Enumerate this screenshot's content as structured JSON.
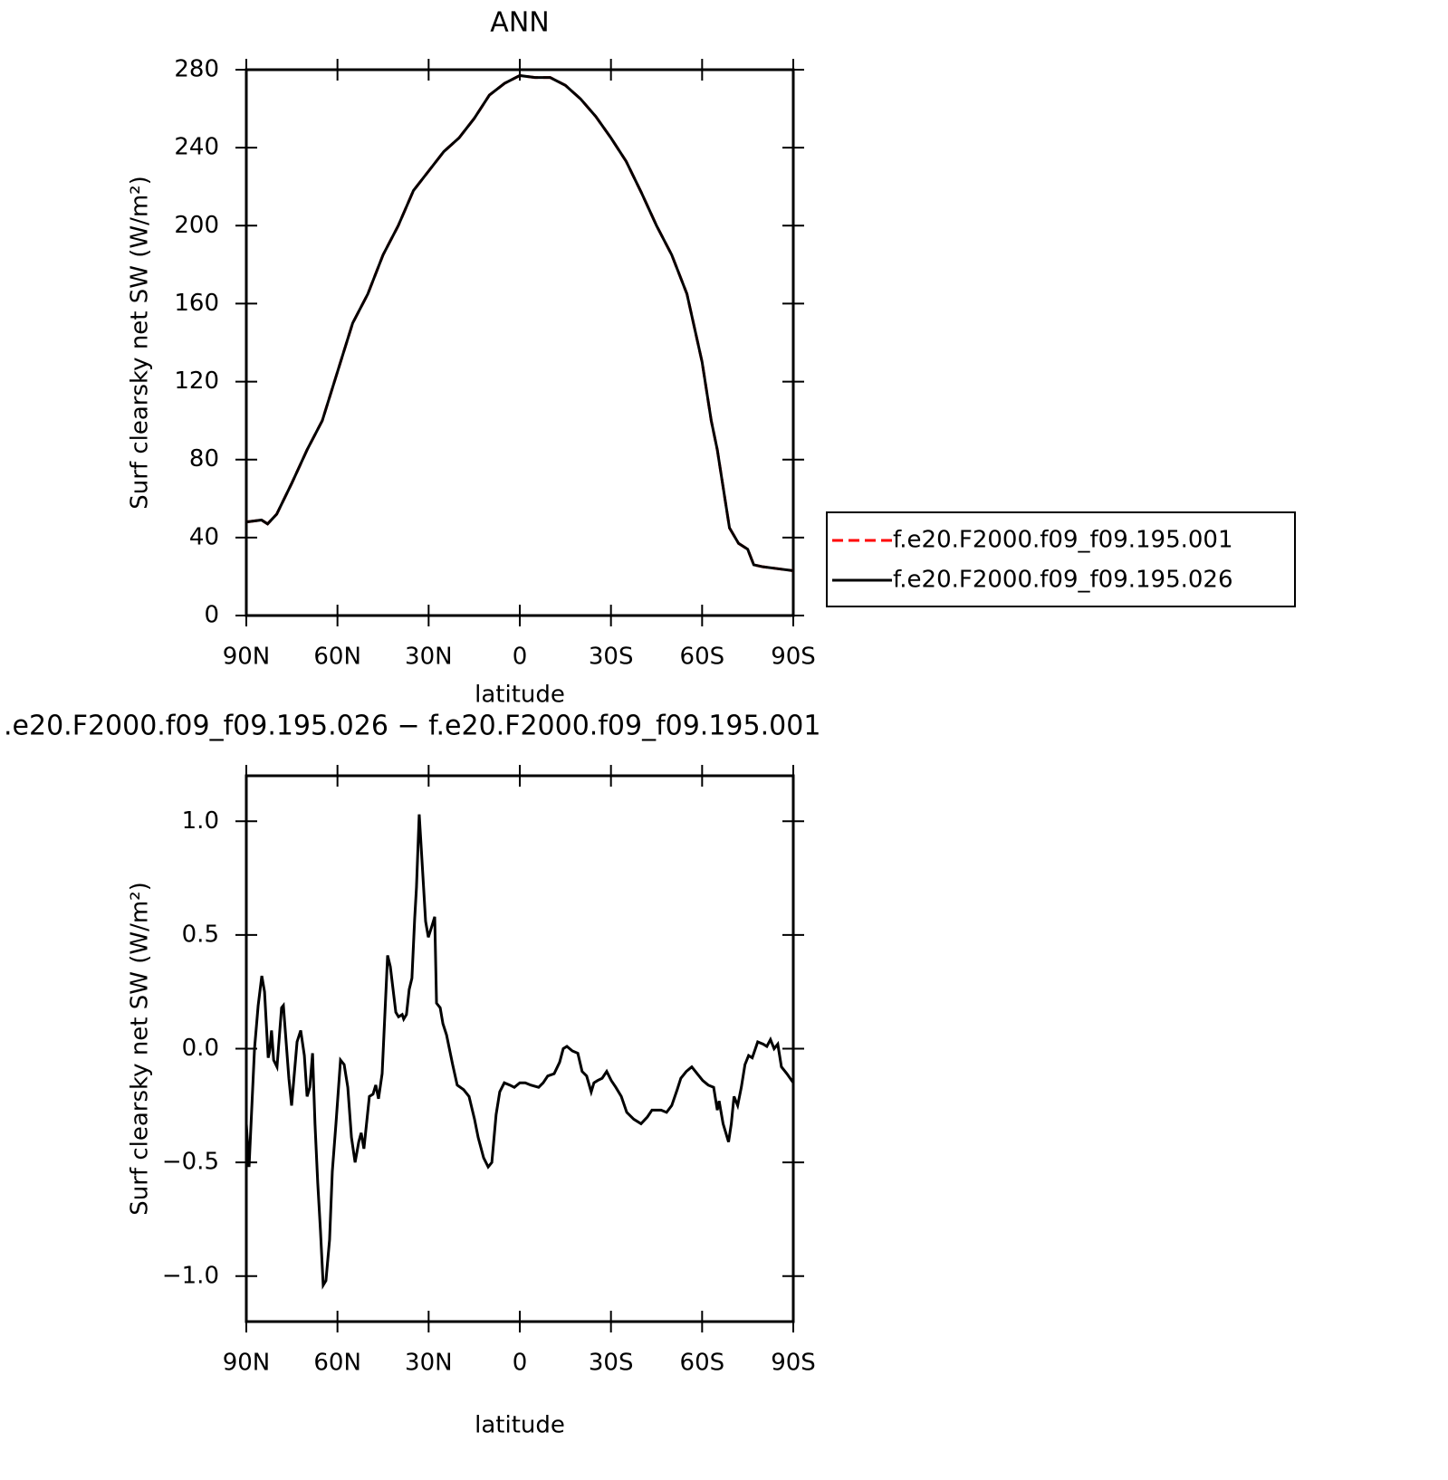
{
  "chart_data": [
    {
      "type": "line",
      "title": "ANN",
      "xlabel": "latitude",
      "ylabel": "Surf clearsky net SW (W/m²)",
      "xlim": [
        90,
        -90
      ],
      "ylim": [
        0,
        280
      ],
      "xticks": [
        {
          "value": 90,
          "label": "90N"
        },
        {
          "value": 60,
          "label": "60N"
        },
        {
          "value": 30,
          "label": "30N"
        },
        0,
        {
          "value": -30,
          "label": "30S"
        },
        {
          "value": -60,
          "label": "60S"
        },
        {
          "value": -90,
          "label": "90S"
        }
      ],
      "yticks": [
        0,
        40,
        80,
        120,
        160,
        200,
        240,
        280
      ],
      "legend": "right",
      "x": [
        90,
        85,
        83,
        80,
        75,
        70,
        65,
        60,
        55,
        50,
        45,
        40,
        35,
        30,
        25,
        20,
        15,
        10,
        5,
        0,
        -5,
        -10,
        -15,
        -20,
        -25,
        -30,
        -35,
        -40,
        -45,
        -50,
        -55,
        -60,
        -63,
        -65,
        -67,
        -69,
        -72,
        -75,
        -77,
        -80,
        -85,
        -90
      ],
      "series": [
        {
          "name": "f.e20.F2000.f09_f09.195.001",
          "color": "#ff0000",
          "linestyle": "dashed",
          "values": [
            48,
            49,
            47,
            52,
            68,
            85,
            100,
            125,
            150,
            165,
            185,
            200,
            218,
            228,
            238,
            245,
            255,
            267,
            273,
            277,
            276,
            276,
            272,
            265,
            256,
            245,
            233,
            217,
            200,
            185,
            165,
            130,
            100,
            85,
            65,
            45,
            37,
            34,
            26,
            25,
            24,
            23
          ]
        },
        {
          "name": "f.e20.F2000.f09_f09.195.026",
          "color": "#000000",
          "linestyle": "solid",
          "values": [
            48,
            49,
            47,
            52,
            68,
            85,
            100,
            125,
            150,
            165,
            185,
            200,
            218,
            228,
            238,
            245,
            255,
            267,
            273,
            277,
            276,
            276,
            272,
            265,
            256,
            245,
            233,
            217,
            200,
            185,
            165,
            130,
            100,
            85,
            65,
            45,
            37,
            34,
            26,
            25,
            24,
            23
          ]
        }
      ]
    },
    {
      "type": "line",
      "title": ".e20.F2000.f09_f09.195.026 − f.e20.F2000.f09_f09.195.001",
      "xlabel": "latitude",
      "ylabel": "Surf clearsky net SW (W/m²)",
      "xlim": [
        90,
        -90
      ],
      "ylim": [
        -1.2,
        1.2
      ],
      "xticks": [
        {
          "value": 90,
          "label": "90N"
        },
        {
          "value": 60,
          "label": "60N"
        },
        {
          "value": 30,
          "label": "30N"
        },
        0,
        {
          "value": -30,
          "label": "30S"
        },
        {
          "value": -60,
          "label": "60S"
        },
        {
          "value": -90,
          "label": "90S"
        }
      ],
      "yticks": [
        {
          "value": -1,
          "label": "−1.0"
        },
        {
          "value": -0.5,
          "label": "−0.5"
        },
        {
          "value": 0,
          "label": "0.0"
        },
        0.5,
        {
          "value": 1,
          "label": "1.0"
        }
      ],
      "x": [
        90,
        89.1,
        87.3,
        86.1,
        84.9,
        84,
        82.8,
        82.3,
        81.7,
        81,
        79.9,
        78.4,
        77.8,
        76,
        75.1,
        73.3,
        72.1,
        70.9,
        70,
        69.1,
        68.2,
        67.4,
        66.5,
        65.6,
        64.7,
        63.8,
        62.6,
        61.7,
        60.5,
        59,
        57.8,
        56.6,
        55.4,
        54.2,
        53,
        52.2,
        51.3,
        49.5,
        48.3,
        47.4,
        46.5,
        45.3,
        43.5,
        42.6,
        40.8,
        39.9,
        38.7,
        38.2,
        37.3,
        36.4,
        35.5,
        34.6,
        34,
        33.1,
        32.2,
        31,
        30.1,
        28.9,
        28,
        27.4,
        26.2,
        25.3,
        24.1,
        22.1,
        20.6,
        18.5,
        16.7,
        14.9,
        13.7,
        11.9,
        10.4,
        9.2,
        7.8,
        6.6,
        5.1,
        3.3,
        1.8,
        0,
        -1.8,
        -3.6,
        -6.2,
        -7.7,
        -9.2,
        -11.3,
        -13.1,
        -14.3,
        -15.5,
        -17.3,
        -19.1,
        -20.5,
        -22,
        -23.5,
        -24.4,
        -25.6,
        -27.1,
        -28.6,
        -30.1,
        -31.6,
        -33.4,
        -35.2,
        -37.5,
        -39.9,
        -42,
        -43.5,
        -46.5,
        -48.3,
        -50,
        -51.8,
        -53,
        -54.8,
        -56.6,
        -58.4,
        -60.2,
        -62,
        -63.8,
        -65,
        -65.6,
        -66.9,
        -68.7,
        -69.6,
        -70.5,
        -71.7,
        -72.9,
        -74.1,
        -75.3,
        -76.5,
        -78.3,
        -80.1,
        -81.3,
        -82.5,
        -83.7,
        -84.9,
        -86.1,
        -87.9,
        -90
      ],
      "series": [
        {
          "color": "#000000",
          "linestyle": "solid",
          "values": [
            -0.33,
            -0.52,
            0,
            0.19,
            0.32,
            0.25,
            -0.04,
            -0.01,
            0.08,
            -0.05,
            -0.08,
            0.18,
            0.19,
            -0.13,
            -0.25,
            0.03,
            0.08,
            -0.03,
            -0.21,
            -0.17,
            -0.02,
            -0.33,
            -0.59,
            -0.8,
            -1.04,
            -1.02,
            -0.84,
            -0.54,
            -0.33,
            -0.05,
            -0.07,
            -0.17,
            -0.39,
            -0.5,
            -0.41,
            -0.37,
            -0.44,
            -0.21,
            -0.2,
            -0.16,
            -0.22,
            -0.11,
            0.41,
            0.36,
            0.16,
            0.14,
            0.15,
            0.13,
            0.15,
            0.26,
            0.31,
            0.57,
            0.71,
            1.03,
            0.83,
            0.56,
            0.49,
            0.54,
            0.58,
            0.2,
            0.18,
            0.11,
            0.06,
            -0.07,
            -0.16,
            -0.18,
            -0.21,
            -0.31,
            -0.39,
            -0.48,
            -0.52,
            -0.5,
            -0.29,
            -0.19,
            -0.15,
            -0.16,
            -0.17,
            -0.15,
            -0.15,
            -0.16,
            -0.17,
            -0.15,
            -0.12,
            -0.11,
            -0.06,
            0,
            0.01,
            -0.01,
            -0.02,
            -0.1,
            -0.12,
            -0.19,
            -0.15,
            -0.14,
            -0.13,
            -0.1,
            -0.14,
            -0.17,
            -0.21,
            -0.28,
            -0.31,
            -0.33,
            -0.3,
            -0.27,
            -0.27,
            -0.28,
            -0.25,
            -0.18,
            -0.13,
            -0.1,
            -0.08,
            -0.11,
            -0.14,
            -0.16,
            -0.17,
            -0.27,
            -0.23,
            -0.33,
            -0.41,
            -0.33,
            -0.21,
            -0.25,
            -0.17,
            -0.07,
            -0.03,
            -0.04,
            0.03,
            0.02,
            0.01,
            0.04,
            0,
            0.02,
            -0.08,
            -0.11,
            -0.15
          ]
        }
      ]
    }
  ]
}
